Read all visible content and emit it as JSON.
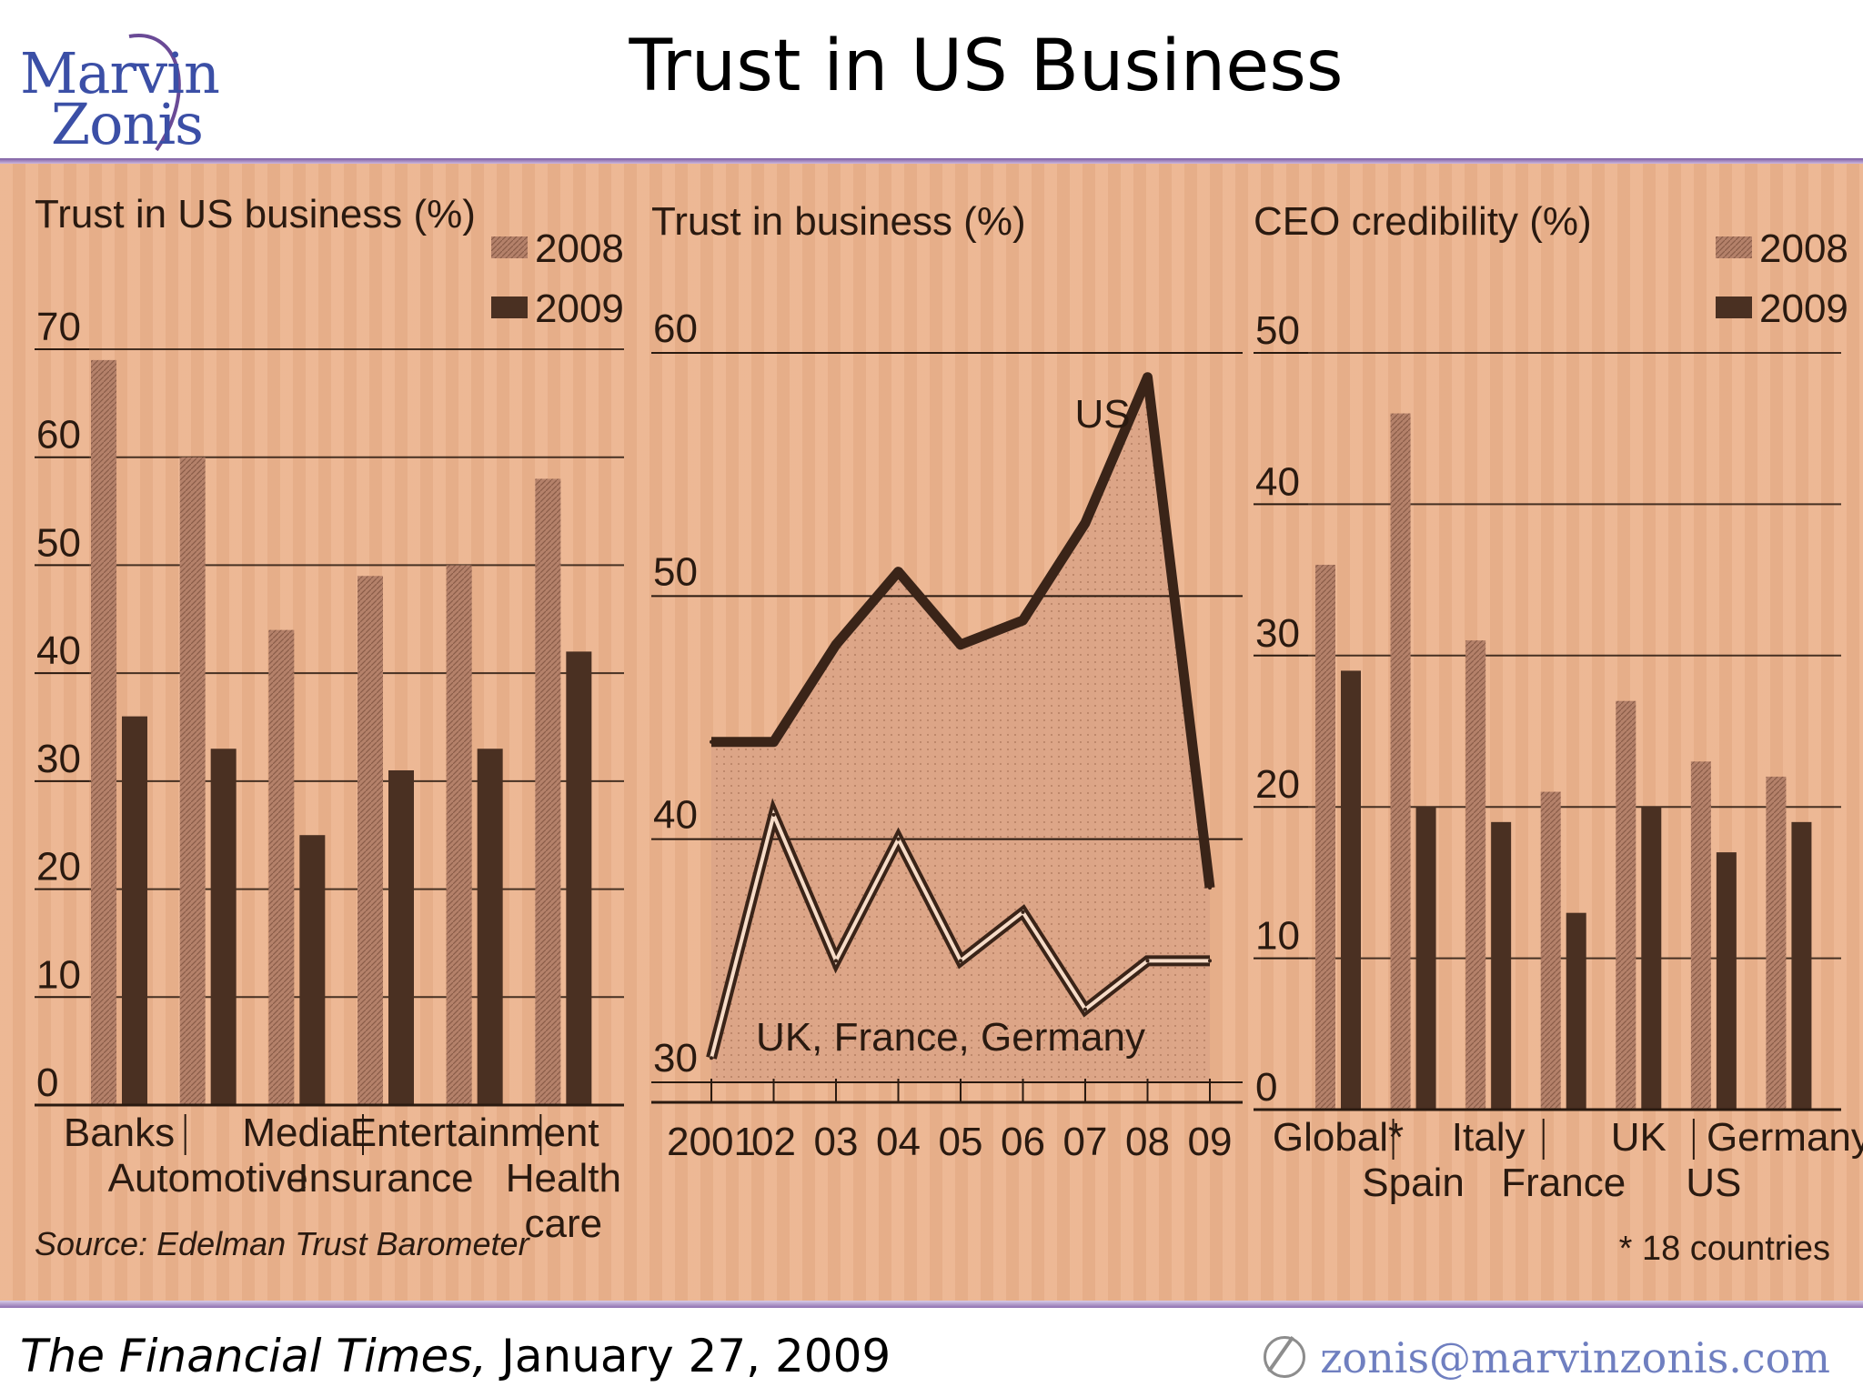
{
  "page": {
    "title": "Trust in US Business",
    "footer_source_italic": "The Financial Times,",
    "footer_source_date": " January 27, 2009",
    "email": "zonis@marvinzonis.com",
    "logo_line1": "Marvin",
    "logo_line2": "Zonis"
  },
  "colors": {
    "background": "#ecb48f",
    "bar_2008": "#b4816a",
    "bar_2009": "#4a3022",
    "ink": "#2a1a10"
  },
  "chart_data": [
    {
      "type": "bar",
      "title": "Trust in US business (%)",
      "categories": [
        "Banks",
        "Automotive",
        "Media",
        "Insurance",
        "Entertainment",
        "Health care"
      ],
      "series": [
        {
          "name": "2008",
          "values": [
            69,
            60,
            44,
            49,
            50,
            58
          ]
        },
        {
          "name": "2009",
          "values": [
            36,
            33,
            25,
            31,
            33,
            42
          ]
        }
      ],
      "ylim": [
        0,
        70
      ],
      "yticks": [
        0,
        10,
        20,
        30,
        40,
        50,
        60,
        70
      ],
      "legend": [
        "2008",
        "2009"
      ],
      "source": "Source: Edelman Trust Barometer"
    },
    {
      "type": "line",
      "title": "Trust in business (%)",
      "x": [
        "2001",
        "02",
        "03",
        "04",
        "05",
        "06",
        "07",
        "08",
        "09"
      ],
      "series": [
        {
          "name": "US",
          "values": [
            44,
            44,
            48,
            51,
            48,
            49,
            53,
            59,
            38
          ]
        },
        {
          "name": "UK, France, Germany",
          "values": [
            31,
            41,
            35,
            40,
            35,
            37,
            33,
            35,
            35
          ]
        }
      ],
      "ylim": [
        30,
        60
      ],
      "yticks": [
        30,
        40,
        50,
        60
      ]
    },
    {
      "type": "bar",
      "title": "CEO credibility (%)",
      "categories": [
        "Global*",
        "Spain",
        "Italy",
        "France",
        "UK",
        "US",
        "Germany"
      ],
      "series": [
        {
          "name": "2008",
          "values": [
            36,
            46,
            31,
            21,
            27,
            23,
            22
          ]
        },
        {
          "name": "2009",
          "values": [
            29,
            20,
            19,
            13,
            20,
            17,
            19
          ]
        }
      ],
      "ylim": [
        0,
        50
      ],
      "yticks": [
        0,
        10,
        20,
        30,
        40,
        50
      ],
      "legend": [
        "2008",
        "2009"
      ],
      "note": "* 18 countries"
    }
  ]
}
